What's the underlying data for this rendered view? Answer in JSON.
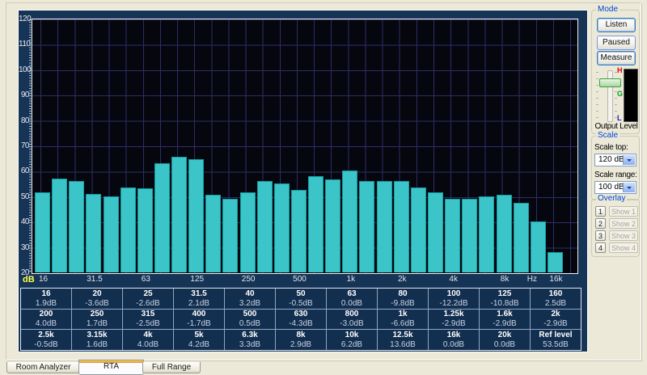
{
  "colors": {
    "bar": "#3BC5C8",
    "panel_navy": "#163455",
    "plot_background": "#06060F",
    "grid": "#2D2D68",
    "groupbox_caption_blue": "#0046D5",
    "tab_accent_orange": "#E68B2C",
    "axis_db_yellow": "#FFFF55"
  },
  "chart_data": {
    "type": "bar",
    "title": "RTA 1/3-octave spectrum",
    "xlabel": "Hz",
    "ylabel": "dB",
    "ylim": [
      20,
      120
    ],
    "yticks": [
      120,
      110,
      100,
      90,
      80,
      70,
      60,
      50,
      40,
      30,
      20
    ],
    "grid": true,
    "bar_color": "#3BC5C8",
    "categories": [
      "16",
      "20",
      "25",
      "31.5",
      "40",
      "50",
      "63",
      "80",
      "100",
      "125",
      "160",
      "200",
      "250",
      "315",
      "400",
      "500",
      "630",
      "800",
      "1k",
      "1.25k",
      "1.6k",
      "2k",
      "2.5k",
      "3.15k",
      "4k",
      "5k",
      "6.3k",
      "8k",
      "10k",
      "12.5k",
      "16k"
    ],
    "values": [
      51.5,
      57,
      56,
      51,
      50,
      53.5,
      53,
      63,
      65.5,
      64.5,
      50.5,
      49,
      51.5,
      56,
      55,
      52.5,
      58,
      56.5,
      60,
      56,
      56,
      56,
      53.5,
      51.5,
      49,
      49,
      50,
      50.5,
      47.5,
      40,
      28
    ],
    "xticks": [
      {
        "label": "16",
        "band": 0
      },
      {
        "label": "31.5",
        "band": 3
      },
      {
        "label": "63",
        "band": 6
      },
      {
        "label": "125",
        "band": 9
      },
      {
        "label": "250",
        "band": 12
      },
      {
        "label": "500",
        "band": 15
      },
      {
        "label": "1k",
        "band": 18
      },
      {
        "label": "2k",
        "band": 21
      },
      {
        "label": "4k",
        "band": 24
      },
      {
        "label": "8k",
        "band": 27
      },
      {
        "label": "Hz",
        "band": 28.6
      },
      {
        "label": "16k",
        "band": 30
      }
    ],
    "y_axis_unit_label": "dB"
  },
  "table": {
    "rows": [
      [
        {
          "f": "16",
          "v": "1.9dB"
        },
        {
          "f": "20",
          "v": "-3.6dB"
        },
        {
          "f": "25",
          "v": "-2.6dB"
        },
        {
          "f": "31.5",
          "v": "2.1dB"
        },
        {
          "f": "40",
          "v": "3.2dB"
        },
        {
          "f": "50",
          "v": "-0.5dB"
        },
        {
          "f": "63",
          "v": "0.0dB"
        },
        {
          "f": "80",
          "v": "-9.8dB"
        },
        {
          "f": "100",
          "v": "-12.2dB"
        },
        {
          "f": "125",
          "v": "-10.8dB"
        },
        {
          "f": "160",
          "v": "2.5dB"
        }
      ],
      [
        {
          "f": "200",
          "v": "4.0dB"
        },
        {
          "f": "250",
          "v": "1.7dB"
        },
        {
          "f": "315",
          "v": "-2.5dB"
        },
        {
          "f": "400",
          "v": "-1.7dB"
        },
        {
          "f": "500",
          "v": "0.5dB"
        },
        {
          "f": "630",
          "v": "-4.3dB"
        },
        {
          "f": "800",
          "v": "-3.0dB"
        },
        {
          "f": "1k",
          "v": "-6.6dB"
        },
        {
          "f": "1.25k",
          "v": "-2.9dB"
        },
        {
          "f": "1.6k",
          "v": "-2.9dB"
        },
        {
          "f": "2k",
          "v": "-2.9dB"
        }
      ],
      [
        {
          "f": "2.5k",
          "v": "-0.5dB"
        },
        {
          "f": "3.15k",
          "v": "1.6dB"
        },
        {
          "f": "4k",
          "v": "4.0dB"
        },
        {
          "f": "5k",
          "v": "4.2dB"
        },
        {
          "f": "6.3k",
          "v": "3.3dB"
        },
        {
          "f": "8k",
          "v": "2.9dB"
        },
        {
          "f": "10k",
          "v": "6.2dB"
        },
        {
          "f": "12.5k",
          "v": "13.6dB"
        },
        {
          "f": "16k",
          "v": "0.0dB"
        },
        {
          "f": "20k",
          "v": "0.0dB"
        },
        {
          "f": "Ref level",
          "v": "53.5dB"
        }
      ]
    ]
  },
  "sidebar": {
    "mode": {
      "title": "Mode",
      "buttons": [
        "Listen",
        "Paused",
        "Measure"
      ],
      "meter": {
        "top": "H",
        "mid": "G",
        "bottom": "L"
      },
      "output_label": "Output Level"
    },
    "scale": {
      "title": "Scale",
      "top_label": "Scale top:",
      "top_value": "120 dB",
      "range_label": "Scale range:",
      "range_value": "100 dB"
    },
    "overlay": {
      "title": "Overlay",
      "rows": [
        {
          "num": "1",
          "label": "Show 1"
        },
        {
          "num": "2",
          "label": "Show 2"
        },
        {
          "num": "3",
          "label": "Show 3"
        },
        {
          "num": "4",
          "label": "Show 4"
        }
      ]
    }
  },
  "tabs": [
    {
      "label": "Room Analyzer",
      "active": false
    },
    {
      "label": "RTA",
      "active": true
    },
    {
      "label": "Full Range",
      "active": false
    }
  ]
}
